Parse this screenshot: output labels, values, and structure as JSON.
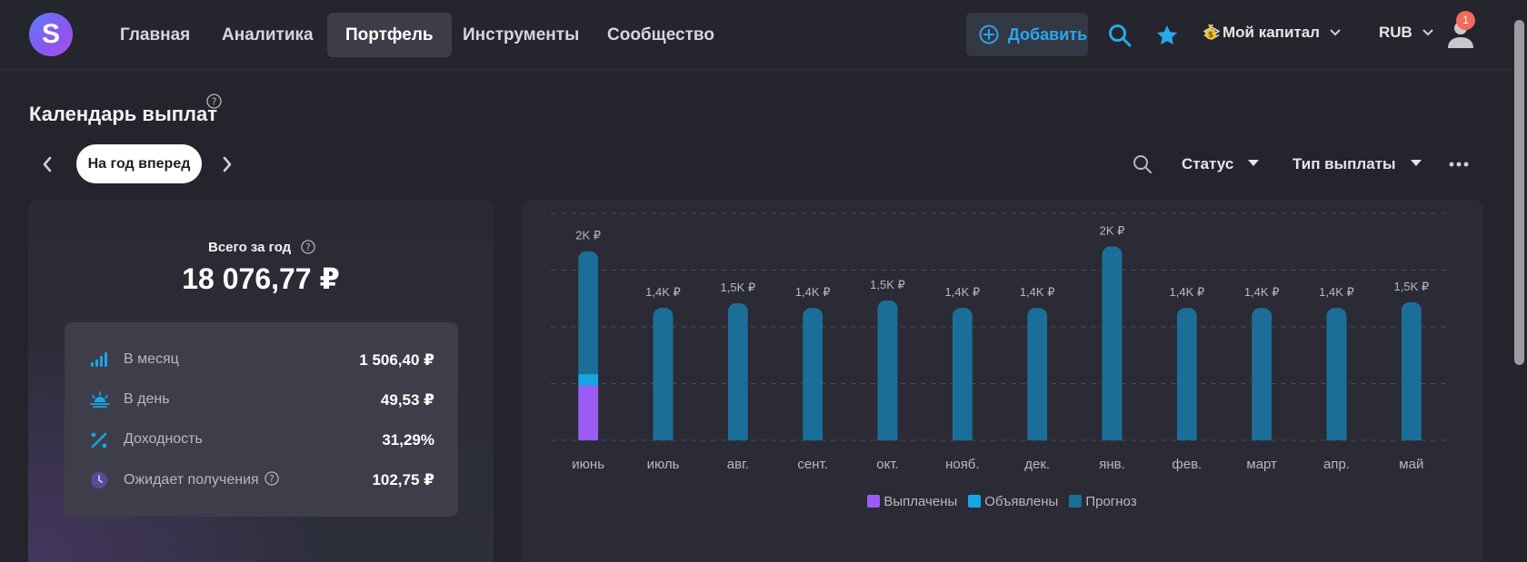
{
  "app": {
    "logo_letter": "S",
    "nav": [
      {
        "label": "Главная",
        "active": false
      },
      {
        "label": "Аналитика",
        "active": false
      },
      {
        "label": "Портфель",
        "active": true
      },
      {
        "label": "Инструменты",
        "active": false
      },
      {
        "label": "Сообщество",
        "active": false
      }
    ],
    "add_label": "Добавить",
    "capital_label": "Мой капитал",
    "currency": "RUB",
    "notifications_count": "1",
    "icons": {
      "add": "plus-circle-icon",
      "search": "search-icon",
      "favorites": "star-icon",
      "layers": "layers-icon",
      "capital": "money-bag-icon",
      "profile": "user-icon"
    },
    "colors": {
      "accent": "#29a8ea",
      "paid": "#9b5cf6",
      "announced": "#13a7e4",
      "forecast": "#1b6e97"
    }
  },
  "page": {
    "title": "Календарь выплат",
    "period_label": "На год вперед",
    "filters": {
      "status": "Статус",
      "payment_type": "Тип выплаты"
    }
  },
  "summary": {
    "title": "Всего за год",
    "total": "18 076,77 ₽",
    "rows": [
      {
        "icon": "signal-bars-icon",
        "label": "В месяц",
        "value": "1 506,40 ₽"
      },
      {
        "icon": "sunrise-icon",
        "label": "В день",
        "value": "49,53 ₽"
      },
      {
        "icon": "percent-icon",
        "label": "Доходность",
        "value": "31,29%"
      },
      {
        "icon": "clock-icon",
        "label": "Ожидает получения",
        "value": "102,75 ₽"
      }
    ]
  },
  "chart_data": {
    "type": "bar",
    "stacked": true,
    "categories": [
      "июнь",
      "июль",
      "авг.",
      "сент.",
      "окт.",
      "нояб.",
      "дек.",
      "янв.",
      "фев.",
      "март",
      "апр.",
      "май"
    ],
    "bar_labels": [
      "2K ₽",
      "1,4K ₽",
      "1,5K ₽",
      "1,4K ₽",
      "1,5K ₽",
      "1,4K ₽",
      "1,4K ₽",
      "2K ₽",
      "1,4K ₽",
      "1,4K ₽",
      "1,4K ₽",
      "1,5K ₽"
    ],
    "series": [
      {
        "name": "Выплачены",
        "color": "#9b5cf6",
        "values": [
          580,
          0,
          0,
          0,
          0,
          0,
          0,
          0,
          0,
          0,
          0,
          0
        ]
      },
      {
        "name": "Объявлены",
        "color": "#13a7e4",
        "values": [
          120,
          0,
          0,
          0,
          0,
          0,
          0,
          0,
          0,
          0,
          0,
          0
        ]
      },
      {
        "name": "Прогноз",
        "color": "#1b6e97",
        "values": [
          1300,
          1400,
          1450,
          1400,
          1480,
          1400,
          1400,
          2050,
          1400,
          1400,
          1400,
          1460
        ]
      }
    ],
    "ylim": [
      0,
      2400
    ],
    "grid": true,
    "legend": "bottom"
  }
}
